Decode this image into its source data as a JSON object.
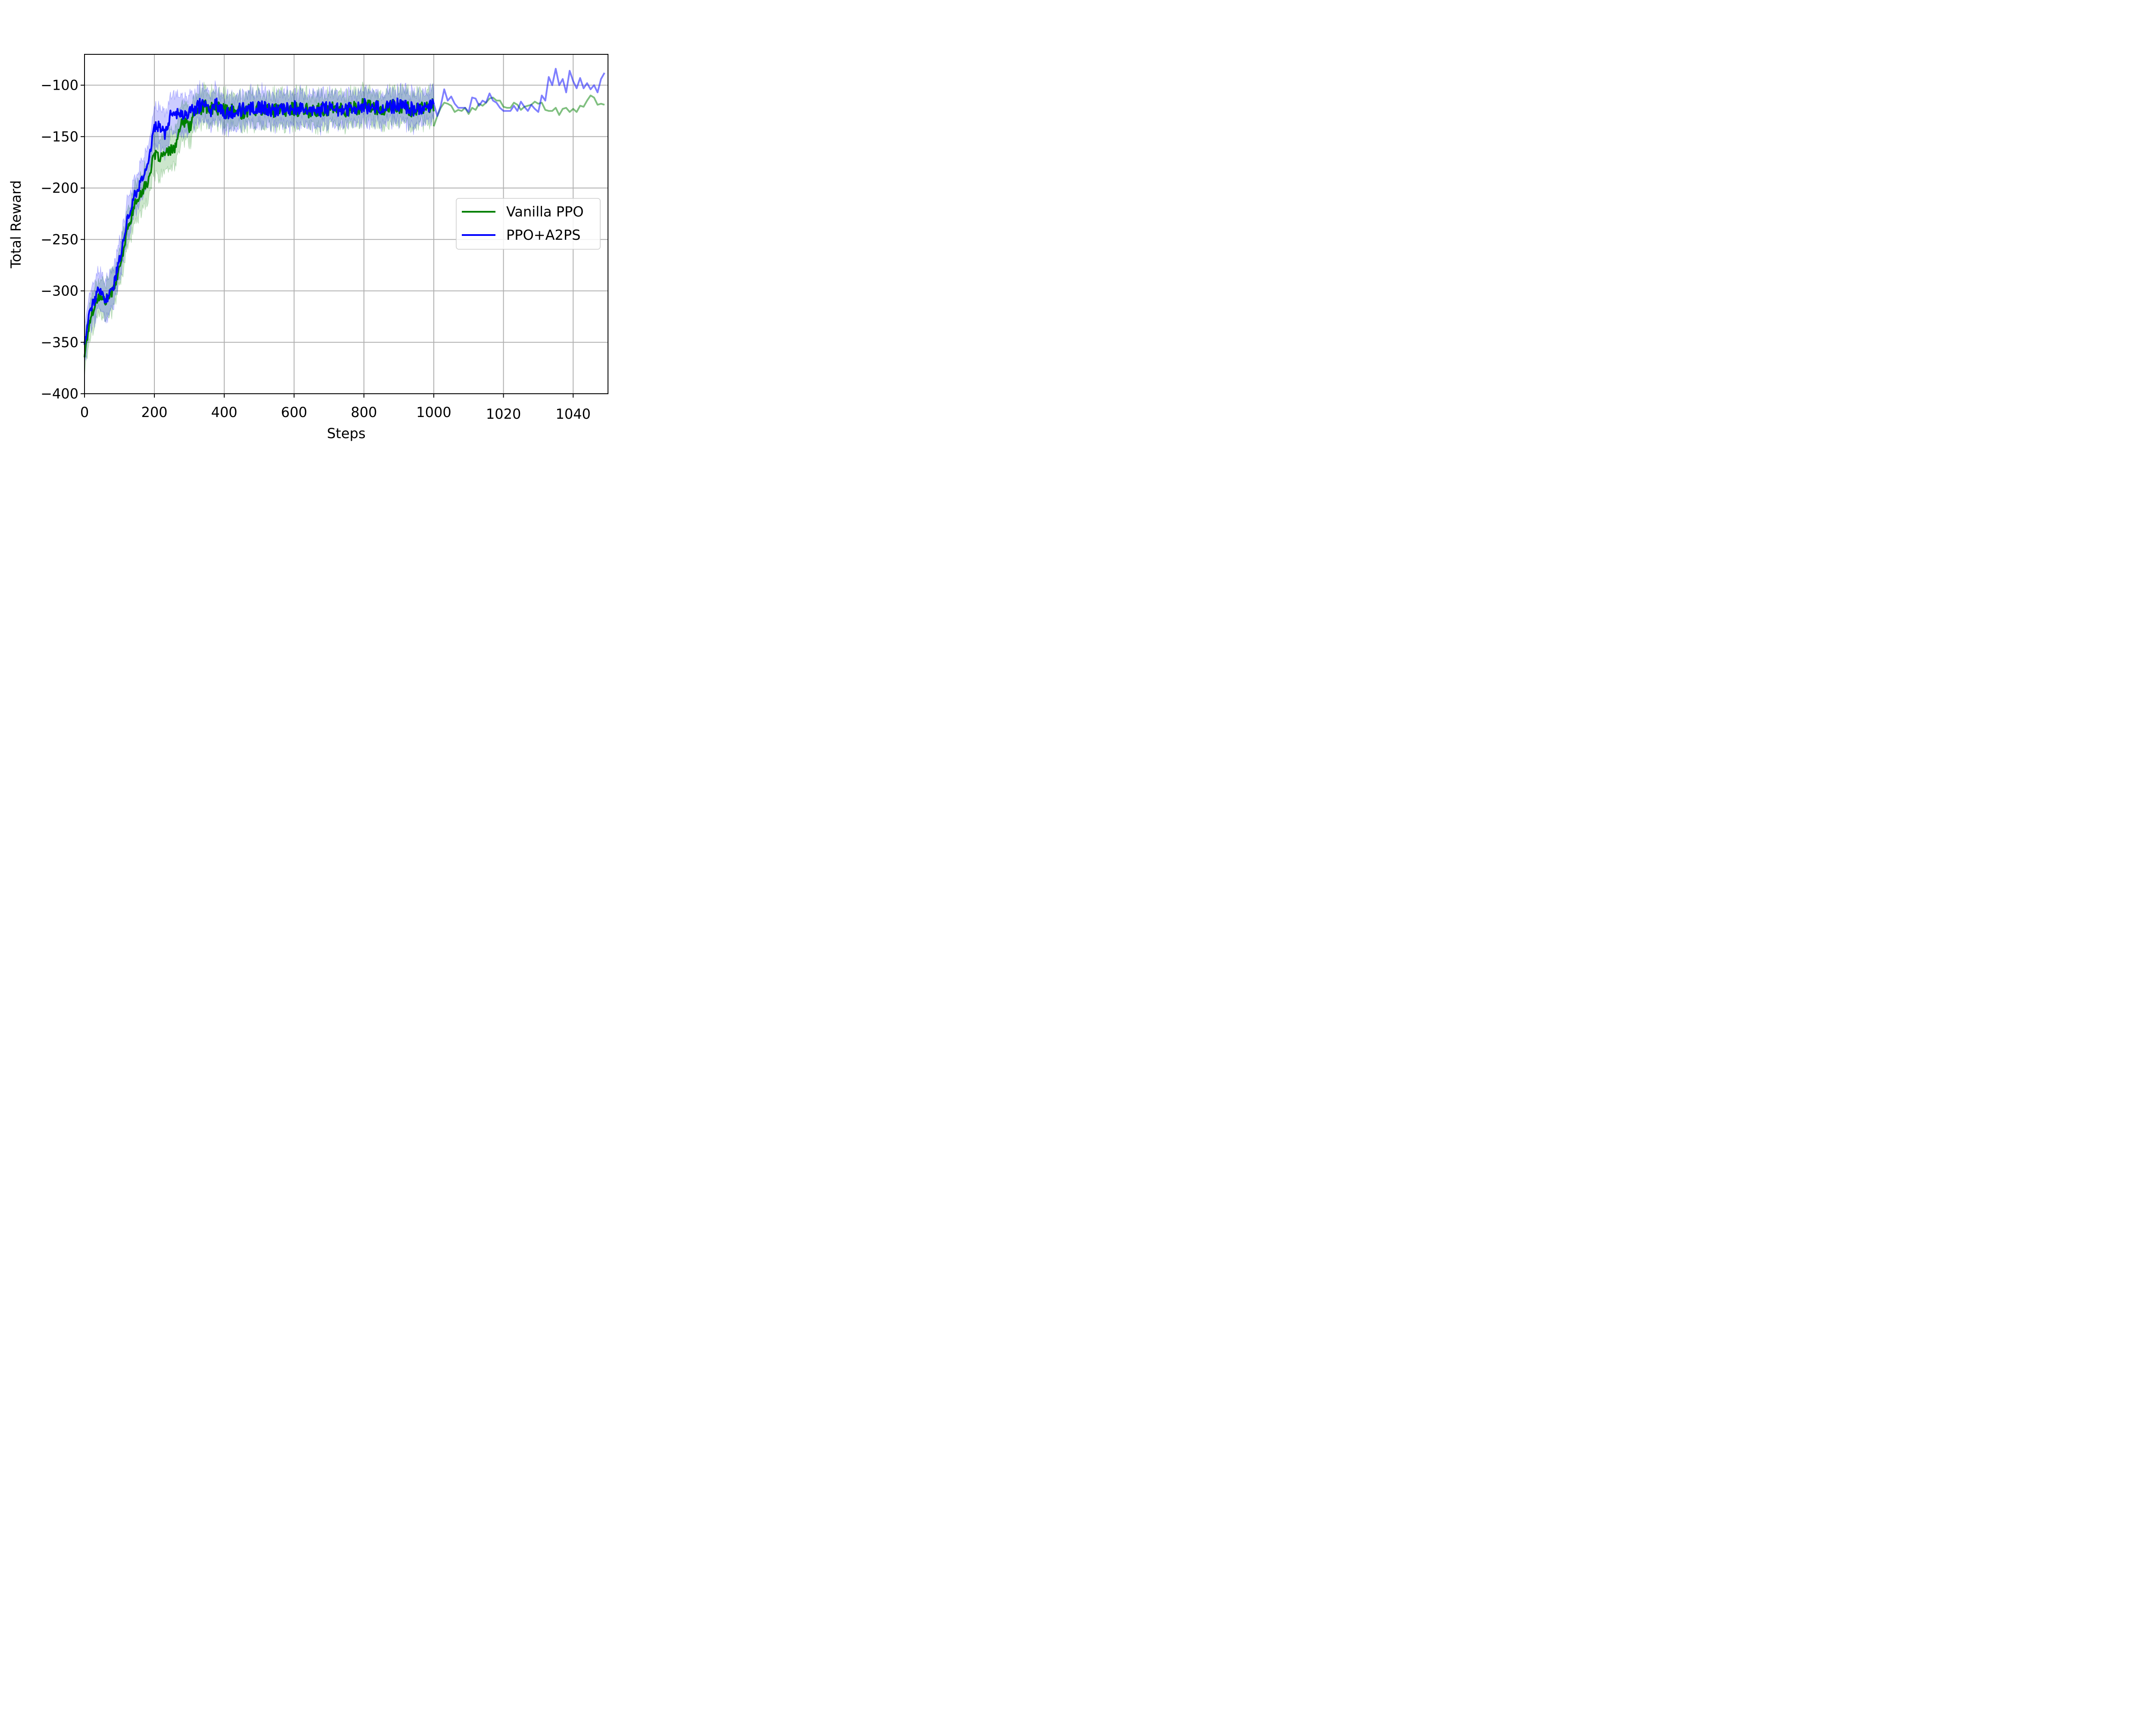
{
  "chart_data": {
    "type": "line",
    "title": "",
    "xlabel": "Steps",
    "ylabel": "Total Reward",
    "ylim": [
      -400,
      -70
    ],
    "yticks": [
      -400,
      -350,
      -300,
      -250,
      -200,
      -150,
      -100
    ],
    "ytick_labels": [
      "−400",
      "−350",
      "−300",
      "−250",
      "−200",
      "−150",
      "−100"
    ],
    "xlim_main": [
      0,
      1000
    ],
    "xticks_main": [
      0,
      200,
      400,
      600,
      800,
      1000
    ],
    "xtick_labels_main": [
      "0",
      "200",
      "400",
      "600",
      "800",
      "1000"
    ],
    "xlim_extension": [
      1000,
      1050
    ],
    "xticks_extension": [
      1020,
      1040
    ],
    "xtick_labels_extension": [
      "1020",
      "1040"
    ],
    "grid": true,
    "legend_position": "center-right",
    "series": [
      {
        "name": "Vanilla PPO",
        "color": "#008000",
        "keypoints_x": [
          0,
          10,
          20,
          40,
          60,
          80,
          100,
          120,
          140,
          160,
          180,
          200,
          220,
          240,
          260,
          280,
          300,
          320,
          340,
          360,
          380,
          400,
          450,
          500,
          550,
          600,
          650,
          700,
          750,
          800,
          850,
          900,
          950,
          1000
        ],
        "keypoints_y": [
          -362,
          -340,
          -322,
          -305,
          -310,
          -300,
          -280,
          -245,
          -220,
          -205,
          -195,
          -168,
          -170,
          -165,
          -160,
          -135,
          -140,
          -125,
          -120,
          -124,
          -122,
          -125,
          -126,
          -122,
          -125,
          -123,
          -125,
          -123,
          -124,
          -120,
          -123,
          -120,
          -125,
          -120
        ],
        "extension_x": [
          1000,
          1001,
          1002,
          1003,
          1004,
          1005,
          1006,
          1007,
          1008,
          1009,
          1010,
          1011,
          1012,
          1013,
          1014,
          1015,
          1016,
          1017,
          1018,
          1019,
          1020,
          1021,
          1022,
          1023,
          1024,
          1025,
          1026,
          1027,
          1028,
          1029,
          1030,
          1031,
          1032,
          1033,
          1034,
          1035,
          1036,
          1037,
          1038,
          1039,
          1040,
          1041,
          1042,
          1043,
          1044,
          1045,
          1046,
          1047,
          1048,
          1049
        ],
        "extension_y": [
          -140,
          -130,
          -122,
          -117,
          -118,
          -120,
          -126,
          -124,
          -125,
          -122,
          -128,
          -122,
          -124,
          -118,
          -120,
          -117,
          -113,
          -112,
          -115,
          -115,
          -121,
          -122,
          -122,
          -117,
          -119,
          -124,
          -121,
          -120,
          -119,
          -116,
          -118,
          -117,
          -124,
          -125,
          -125,
          -122,
          -129,
          -123,
          -122,
          -126,
          -123,
          -126,
          -120,
          -121,
          -115,
          -110,
          -112,
          -119,
          -118,
          -119
        ]
      },
      {
        "name": "PPO+A2PS",
        "color": "#0000ff",
        "keypoints_x": [
          0,
          10,
          20,
          40,
          60,
          80,
          100,
          120,
          140,
          160,
          180,
          200,
          215,
          230,
          250,
          280,
          300,
          320,
          340,
          360,
          380,
          400,
          450,
          500,
          550,
          600,
          650,
          700,
          750,
          800,
          850,
          900,
          950,
          1000
        ],
        "keypoints_y": [
          -350,
          -330,
          -315,
          -300,
          -308,
          -300,
          -270,
          -235,
          -210,
          -195,
          -180,
          -140,
          -140,
          -148,
          -125,
          -130,
          -128,
          -122,
          -118,
          -124,
          -118,
          -126,
          -124,
          -121,
          -126,
          -121,
          -126,
          -122,
          -124,
          -120,
          -123,
          -119,
          -124,
          -118
        ],
        "extension_x": [
          1000,
          1001,
          1002,
          1003,
          1004,
          1005,
          1006,
          1007,
          1008,
          1009,
          1010,
          1011,
          1012,
          1013,
          1014,
          1015,
          1016,
          1017,
          1018,
          1019,
          1020,
          1021,
          1022,
          1023,
          1024,
          1025,
          1026,
          1027,
          1028,
          1029,
          1030,
          1031,
          1032,
          1033,
          1034,
          1035,
          1036,
          1037,
          1038,
          1039,
          1040,
          1041,
          1042,
          1043,
          1044,
          1045,
          1046,
          1047,
          1048,
          1049
        ],
        "extension_y": [
          -118,
          -130,
          -120,
          -104,
          -115,
          -111,
          -118,
          -122,
          -122,
          -122,
          -126,
          -112,
          -113,
          -120,
          -115,
          -117,
          -108,
          -115,
          -117,
          -122,
          -125,
          -125,
          -125,
          -120,
          -125,
          -116,
          -121,
          -125,
          -119,
          -123,
          -126,
          -110,
          -115,
          -92,
          -100,
          -84,
          -100,
          -94,
          -107,
          -86,
          -96,
          -103,
          -93,
          -103,
          -98,
          -104,
          -100,
          -107,
          -94,
          -88
        ]
      }
    ]
  }
}
